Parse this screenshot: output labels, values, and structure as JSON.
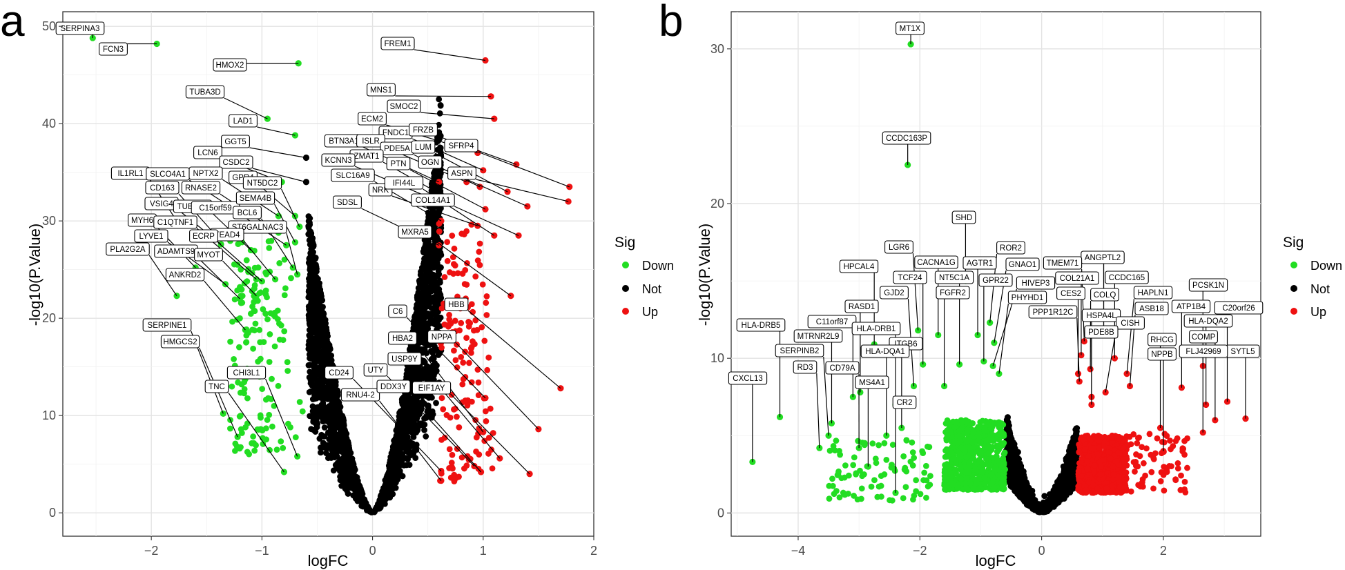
{
  "colors": {
    "down": "#22dd22",
    "not": "#000000",
    "up": "#ee1111"
  },
  "chart_data": [
    {
      "panel": "a",
      "type": "scatter",
      "xlabel": "logFC",
      "ylabel": "-log10(P.Value)",
      "xlim": [
        -2.8,
        2.0
      ],
      "ylim": [
        -2.4,
        51.5
      ],
      "xticks": [
        -2,
        -1,
        0,
        1,
        2
      ],
      "xtick_labels": [
        "−2",
        "−1",
        "0",
        "1",
        "2"
      ],
      "yticks": [
        0,
        10,
        20,
        30,
        40,
        50
      ],
      "ytick_labels": [
        "0",
        "10",
        "20",
        "30",
        "40",
        "50"
      ],
      "grid": true,
      "legend": {
        "title": "Sig",
        "position": "right",
        "entries": [
          {
            "label": "Down",
            "color": "#22dd22"
          },
          {
            "label": "Not",
            "color": "#000000"
          },
          {
            "label": "Up",
            "color": "#ee1111"
          }
        ]
      },
      "cloud": {
        "threshold": 0.58,
        "left_x_range": [
          -0.58,
          0
        ],
        "right_x_range": [
          0,
          0.62
        ],
        "left_y_max": 31.5,
        "right_y_max": 42.5,
        "note": "dense non-significant points"
      },
      "down_scatter": {
        "x_range": [
          -1.3,
          -0.6
        ],
        "y_range": [
          6,
          28
        ]
      },
      "up_scatter": {
        "x_range": [
          0.6,
          1.2
        ],
        "y_range": [
          3,
          30
        ]
      },
      "labeled_genes": [
        {
          "gene": "SERPINA3",
          "x": -2.53,
          "y": 48.8,
          "sig": "Down"
        },
        {
          "gene": "FCN3",
          "x": -1.95,
          "y": 48.2,
          "sig": "Down"
        },
        {
          "gene": "HMOX2",
          "x": -0.67,
          "y": 46.2,
          "sig": "Down"
        },
        {
          "gene": "TUBA3D",
          "x": -0.95,
          "y": 40.5,
          "sig": "Down"
        },
        {
          "gene": "LAD1",
          "x": -0.7,
          "y": 38.8,
          "sig": "Down"
        },
        {
          "gene": "GGT5",
          "x": -0.6,
          "y": 36.5,
          "sig": "Not"
        },
        {
          "gene": "LCN6",
          "x": -0.82,
          "y": 34.0,
          "sig": "Down"
        },
        {
          "gene": "CSDC2",
          "x": -0.6,
          "y": 34.0,
          "sig": "Not"
        },
        {
          "gene": "IL1RL1",
          "x": -1.77,
          "y": 30.0,
          "sig": "Down"
        },
        {
          "gene": "SLCO4A1",
          "x": -1.25,
          "y": 31.2,
          "sig": "Down"
        },
        {
          "gene": "NPTX2",
          "x": -0.85,
          "y": 30.5,
          "sig": "Down"
        },
        {
          "gene": "GPR4",
          "x": -0.7,
          "y": 30.5,
          "sig": "Down"
        },
        {
          "gene": "NT5DC2",
          "x": -0.66,
          "y": 29.4,
          "sig": "Down"
        },
        {
          "gene": "CD163",
          "x": -1.4,
          "y": 28.3,
          "sig": "Down"
        },
        {
          "gene": "RNASE2",
          "x": -0.85,
          "y": 28.8,
          "sig": "Down"
        },
        {
          "gene": "VSIG4",
          "x": -1.37,
          "y": 27.6,
          "sig": "Down"
        },
        {
          "gene": "TUBA3E",
          "x": -1.1,
          "y": 27.0,
          "sig": "Down"
        },
        {
          "gene": "C15orf59",
          "x": -0.78,
          "y": 27.5,
          "sig": "Down"
        },
        {
          "gene": "SEMA4B",
          "x": -0.7,
          "y": 27.8,
          "sig": "Down"
        },
        {
          "gene": "BCL6",
          "x": -0.72,
          "y": 25.2,
          "sig": "Down"
        },
        {
          "gene": "MYH6",
          "x": -1.6,
          "y": 25.2,
          "sig": "Down"
        },
        {
          "gene": "C1QTNF1",
          "x": -1.05,
          "y": 24.0,
          "sig": "Down"
        },
        {
          "gene": "ST6GALNAC3",
          "x": -0.68,
          "y": 24.5,
          "sig": "Down"
        },
        {
          "gene": "TEAD4",
          "x": -0.88,
          "y": 24.0,
          "sig": "Down"
        },
        {
          "gene": "ECRP",
          "x": -1.0,
          "y": 23.8,
          "sig": "Down"
        },
        {
          "gene": "LYVE1",
          "x": -1.33,
          "y": 23.5,
          "sig": "Down"
        },
        {
          "gene": "PLA2G2A",
          "x": -1.77,
          "y": 22.3,
          "sig": "Down"
        },
        {
          "gene": "ADAMTS9",
          "x": -1.2,
          "y": 22.0,
          "sig": "Down"
        },
        {
          "gene": "MYOT",
          "x": -1.05,
          "y": 22.3,
          "sig": "Down"
        },
        {
          "gene": "ANKRD2",
          "x": -1.15,
          "y": 18.8,
          "sig": "Down"
        },
        {
          "gene": "SERPINE1",
          "x": -1.35,
          "y": 10.2,
          "sig": "Down"
        },
        {
          "gene": "HMGCS2",
          "x": -1.22,
          "y": 7.8,
          "sig": "Down"
        },
        {
          "gene": "CHI3L1",
          "x": -0.68,
          "y": 5.8,
          "sig": "Down"
        },
        {
          "gene": "TNC",
          "x": -0.8,
          "y": 4.2,
          "sig": "Down"
        },
        {
          "gene": "FREM1",
          "x": 1.02,
          "y": 46.5,
          "sig": "Up"
        },
        {
          "gene": "MNS1",
          "x": 1.07,
          "y": 42.8,
          "sig": "Up"
        },
        {
          "gene": "SMOC2",
          "x": 1.1,
          "y": 40.5,
          "sig": "Up"
        },
        {
          "gene": "ECM2",
          "x": 0.95,
          "y": 37.0,
          "sig": "Up"
        },
        {
          "gene": "FNDC1",
          "x": 1.0,
          "y": 35.2,
          "sig": "Up"
        },
        {
          "gene": "FRZB",
          "x": 1.3,
          "y": 35.8,
          "sig": "Up"
        },
        {
          "gene": "BTN3A1",
          "x": 0.6,
          "y": 34.0,
          "sig": "Up"
        },
        {
          "gene": "ISLR",
          "x": 0.85,
          "y": 34.0,
          "sig": "Up"
        },
        {
          "gene": "PDE5A",
          "x": 0.97,
          "y": 33.5,
          "sig": "Up"
        },
        {
          "gene": "LUM",
          "x": 1.22,
          "y": 33.0,
          "sig": "Up"
        },
        {
          "gene": "SFRP4",
          "x": 1.78,
          "y": 33.5,
          "sig": "Up"
        },
        {
          "gene": "ZMAT1",
          "x": 0.7,
          "y": 32.2,
          "sig": "Up"
        },
        {
          "gene": "KCNN3",
          "x": 0.6,
          "y": 32.0,
          "sig": "Up"
        },
        {
          "gene": "PTN",
          "x": 1.02,
          "y": 31.2,
          "sig": "Up"
        },
        {
          "gene": "OGN",
          "x": 1.4,
          "y": 31.5,
          "sig": "Up"
        },
        {
          "gene": "ASPN",
          "x": 1.77,
          "y": 32.0,
          "sig": "Up"
        },
        {
          "gene": "SLC16A9",
          "x": 0.62,
          "y": 30.0,
          "sig": "Up"
        },
        {
          "gene": "NRK",
          "x": 0.95,
          "y": 29.5,
          "sig": "Up"
        },
        {
          "gene": "IFI44L",
          "x": 1.1,
          "y": 28.5,
          "sig": "Up"
        },
        {
          "gene": "COL14A1",
          "x": 1.32,
          "y": 28.5,
          "sig": "Up"
        },
        {
          "gene": "SDSL",
          "x": 0.6,
          "y": 27.5,
          "sig": "Up"
        },
        {
          "gene": "MXRA5",
          "x": 1.25,
          "y": 22.3,
          "sig": "Up"
        },
        {
          "gene": "HBB",
          "x": 1.7,
          "y": 12.8,
          "sig": "Up"
        },
        {
          "gene": "C6",
          "x": 1.02,
          "y": 11.8,
          "sig": "Up"
        },
        {
          "gene": "HBA2",
          "x": 1.0,
          "y": 8.3,
          "sig": "Up"
        },
        {
          "gene": "NPPA",
          "x": 1.5,
          "y": 8.6,
          "sig": "Up"
        },
        {
          "gene": "USP9Y",
          "x": 1.15,
          "y": 5.6,
          "sig": "Up"
        },
        {
          "gene": "CD24",
          "x": 0.62,
          "y": 4.3,
          "sig": "Up"
        },
        {
          "gene": "UTY",
          "x": 0.92,
          "y": 4.8,
          "sig": "Up"
        },
        {
          "gene": "RNU4-2",
          "x": 0.62,
          "y": 3.3,
          "sig": "Up"
        },
        {
          "gene": "DDX3Y",
          "x": 0.98,
          "y": 4.2,
          "sig": "Up"
        },
        {
          "gene": "EIF1AY",
          "x": 1.42,
          "y": 4.0,
          "sig": "Up"
        }
      ],
      "extra_points": [
        {
          "x": 0.6,
          "y": 42.5,
          "sig": "Not"
        }
      ]
    },
    {
      "panel": "b",
      "type": "scatter",
      "xlabel": "logFC",
      "ylabel": "-log10(P.Value)",
      "xlim": [
        -5.1,
        3.6
      ],
      "ylim": [
        -1.5,
        32.4
      ],
      "xticks": [
        -4,
        -2,
        0,
        2
      ],
      "xtick_labels": [
        "−4",
        "−2",
        "0",
        "2"
      ],
      "yticks": [
        0,
        10,
        20,
        30
      ],
      "ytick_labels": [
        "0",
        "10",
        "20",
        "30"
      ],
      "grid": true,
      "legend": {
        "title": "Sig",
        "position": "right",
        "entries": [
          {
            "label": "Down",
            "color": "#22dd22"
          },
          {
            "label": "Not",
            "color": "#000000"
          },
          {
            "label": "Up",
            "color": "#ee1111"
          }
        ]
      },
      "cloud": {
        "threshold": 0.58,
        "left_x_range": [
          -0.58,
          0
        ],
        "right_x_range": [
          0,
          0.58
        ],
        "left_y_max": 6.0,
        "right_y_max": 5.2,
        "note": "dense non-significant points"
      },
      "down_cloud": {
        "x_range": [
          -1.6,
          -0.6
        ],
        "y_range": [
          1.5,
          6.0
        ]
      },
      "up_cloud": {
        "x_range": [
          0.6,
          1.4
        ],
        "y_range": [
          1.3,
          5.0
        ]
      },
      "labeled_genes": [
        {
          "gene": "MT1X",
          "x": -2.15,
          "y": 30.3,
          "sig": "Down"
        },
        {
          "gene": "CCDC163P",
          "x": -2.2,
          "y": 22.5,
          "sig": "Down"
        },
        {
          "gene": "SHD",
          "x": -1.25,
          "y": 15.0,
          "sig": "Down"
        },
        {
          "gene": "LGR6",
          "x": -2.03,
          "y": 11.8,
          "sig": "Down"
        },
        {
          "gene": "ROR2",
          "x": -0.85,
          "y": 12.3,
          "sig": "Down"
        },
        {
          "gene": "CACNA1G",
          "x": -1.7,
          "y": 11.5,
          "sig": "Down"
        },
        {
          "gene": "AGTR1",
          "x": -1.05,
          "y": 11.5,
          "sig": "Down"
        },
        {
          "gene": "GNAO1",
          "x": -0.78,
          "y": 11.0,
          "sig": "Down"
        },
        {
          "gene": "HPCAL4",
          "x": -2.75,
          "y": 10.9,
          "sig": "Down"
        },
        {
          "gene": "TCF24",
          "x": -1.95,
          "y": 9.6,
          "sig": "Down"
        },
        {
          "gene": "NT5C1A",
          "x": -1.35,
          "y": 9.6,
          "sig": "Down"
        },
        {
          "gene": "GPR22",
          "x": -0.95,
          "y": 9.8,
          "sig": "Down"
        },
        {
          "gene": "HIVEP3",
          "x": -0.8,
          "y": 9.5,
          "sig": "Down"
        },
        {
          "gene": "GJD2",
          "x": -2.1,
          "y": 8.2,
          "sig": "Down"
        },
        {
          "gene": "FGFR2",
          "x": -1.6,
          "y": 8.2,
          "sig": "Down"
        },
        {
          "gene": "PHYHD1",
          "x": -0.7,
          "y": 9.0,
          "sig": "Down"
        },
        {
          "gene": "RASD1",
          "x": -2.98,
          "y": 7.8,
          "sig": "Down"
        },
        {
          "gene": "C11orf87",
          "x": -3.1,
          "y": 7.5,
          "sig": "Down"
        },
        {
          "gene": "HLA-DRB1",
          "x": -2.4,
          "y": 7.0,
          "sig": "Down"
        },
        {
          "gene": "HLA-DRB5",
          "x": -4.3,
          "y": 6.2,
          "sig": "Down"
        },
        {
          "gene": "MTRNR2L9",
          "x": -3.45,
          "y": 5.8,
          "sig": "Down"
        },
        {
          "gene": "SERPINB2",
          "x": -3.5,
          "y": 5.0,
          "sig": "Down"
        },
        {
          "gene": "ITGB6",
          "x": -2.3,
          "y": 5.5,
          "sig": "Down"
        },
        {
          "gene": "HLA-DQA1",
          "x": -2.55,
          "y": 5.0,
          "sig": "Down"
        },
        {
          "gene": "RD3",
          "x": -3.65,
          "y": 4.2,
          "sig": "Down"
        },
        {
          "gene": "CD79A",
          "x": -3.0,
          "y": 4.2,
          "sig": "Down"
        },
        {
          "gene": "MS4A1",
          "x": -2.85,
          "y": 3.0,
          "sig": "Down"
        },
        {
          "gene": "CXCL13",
          "x": -4.75,
          "y": 3.3,
          "sig": "Down"
        },
        {
          "gene": "CR2",
          "x": -2.4,
          "y": 1.3,
          "sig": "Down"
        },
        {
          "gene": "ANGPTL2",
          "x": 1.02,
          "y": 11.7,
          "sig": "Up"
        },
        {
          "gene": "TMEM71",
          "x": 0.7,
          "y": 11.1,
          "sig": "Up"
        },
        {
          "gene": "COL21A1",
          "x": 0.65,
          "y": 10.2,
          "sig": "Up"
        },
        {
          "gene": "CCDC165",
          "x": 1.2,
          "y": 10.0,
          "sig": "Up"
        },
        {
          "gene": "PCSK1N",
          "x": 2.65,
          "y": 9.5,
          "sig": "Up"
        },
        {
          "gene": "CES2",
          "x": 0.6,
          "y": 9.0,
          "sig": "Up"
        },
        {
          "gene": "COLQ",
          "x": 0.8,
          "y": 9.3,
          "sig": "Up"
        },
        {
          "gene": "HAPLN1",
          "x": 1.4,
          "y": 9.0,
          "sig": "Up"
        },
        {
          "gene": "PPP1R12C",
          "x": 0.62,
          "y": 8.5,
          "sig": "Up"
        },
        {
          "gene": "ATP1B4",
          "x": 2.3,
          "y": 8.1,
          "sig": "Up"
        },
        {
          "gene": "ASB18",
          "x": 1.45,
          "y": 8.2,
          "sig": "Up"
        },
        {
          "gene": "HSPA4L",
          "x": 0.82,
          "y": 7.5,
          "sig": "Up"
        },
        {
          "gene": "CISH",
          "x": 1.05,
          "y": 7.8,
          "sig": "Up"
        },
        {
          "gene": "C20orf26",
          "x": 3.05,
          "y": 7.2,
          "sig": "Up"
        },
        {
          "gene": "HLA-DQA2",
          "x": 2.7,
          "y": 7.0,
          "sig": "Up"
        },
        {
          "gene": "PDE8B",
          "x": 0.82,
          "y": 7.0,
          "sig": "Up"
        },
        {
          "gene": "COMP",
          "x": 2.85,
          "y": 6.0,
          "sig": "Up"
        },
        {
          "gene": "SYTL5",
          "x": 3.35,
          "y": 6.1,
          "sig": "Up"
        },
        {
          "gene": "RHCG",
          "x": 1.95,
          "y": 5.5,
          "sig": "Up"
        },
        {
          "gene": "FLJ42969",
          "x": 2.65,
          "y": 5.2,
          "sig": "Up"
        },
        {
          "gene": "NPPB",
          "x": 2.0,
          "y": 4.0,
          "sig": "Up"
        }
      ]
    }
  ]
}
